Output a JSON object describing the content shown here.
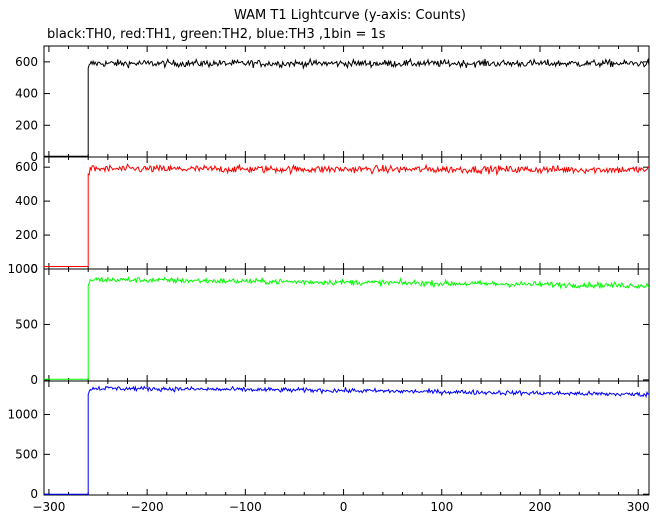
{
  "chart_data": {
    "type": "line",
    "title": "WAM T1 Lightcurve (y-axis: Counts)",
    "subtitle": "black:TH0, red:TH1, green:TH2, blue:TH3 ,1bin = 1s",
    "xlabel": "",
    "ylabel": "",
    "xlim": [
      -305,
      311
    ],
    "xticks": [
      -300,
      -200,
      -100,
      0,
      100,
      200,
      300
    ],
    "grid": false,
    "legend": "none",
    "panels": [
      {
        "name": "TH0",
        "color": "#000000",
        "ylim": [
          0,
          700
        ],
        "yticks": [
          0,
          200,
          400,
          600
        ],
        "points": [
          [
            -305,
            5
          ],
          [
            -260,
            5
          ],
          [
            -260,
            560
          ],
          [
            -257,
            590
          ],
          [
            311,
            590
          ]
        ],
        "noise": 22
      },
      {
        "name": "TH1",
        "color": "#ff0000",
        "ylim": [
          0,
          660
        ],
        "yticks": [
          0,
          200,
          400,
          600
        ],
        "points": [
          [
            -305,
            15
          ],
          [
            -260,
            15
          ],
          [
            -260,
            560
          ],
          [
            -257,
            590
          ],
          [
            311,
            585
          ]
        ],
        "noise": 22
      },
      {
        "name": "TH2",
        "color": "#00ff00",
        "ylim": [
          -10,
          1000
        ],
        "yticks": [
          0,
          500,
          1000
        ],
        "points": [
          [
            -305,
            5
          ],
          [
            -260,
            5
          ],
          [
            -260,
            850
          ],
          [
            -257,
            905
          ],
          [
            0,
            880
          ],
          [
            311,
            850
          ]
        ],
        "noise": 25
      },
      {
        "name": "TH3",
        "color": "#0000ff",
        "ylim": [
          -10,
          1420
        ],
        "yticks": [
          0,
          500,
          1000
        ],
        "points": [
          [
            -305,
            0
          ],
          [
            -260,
            0
          ],
          [
            -260,
            1250
          ],
          [
            -257,
            1330
          ],
          [
            0,
            1300
          ],
          [
            311,
            1250
          ]
        ],
        "noise": 28
      }
    ]
  }
}
